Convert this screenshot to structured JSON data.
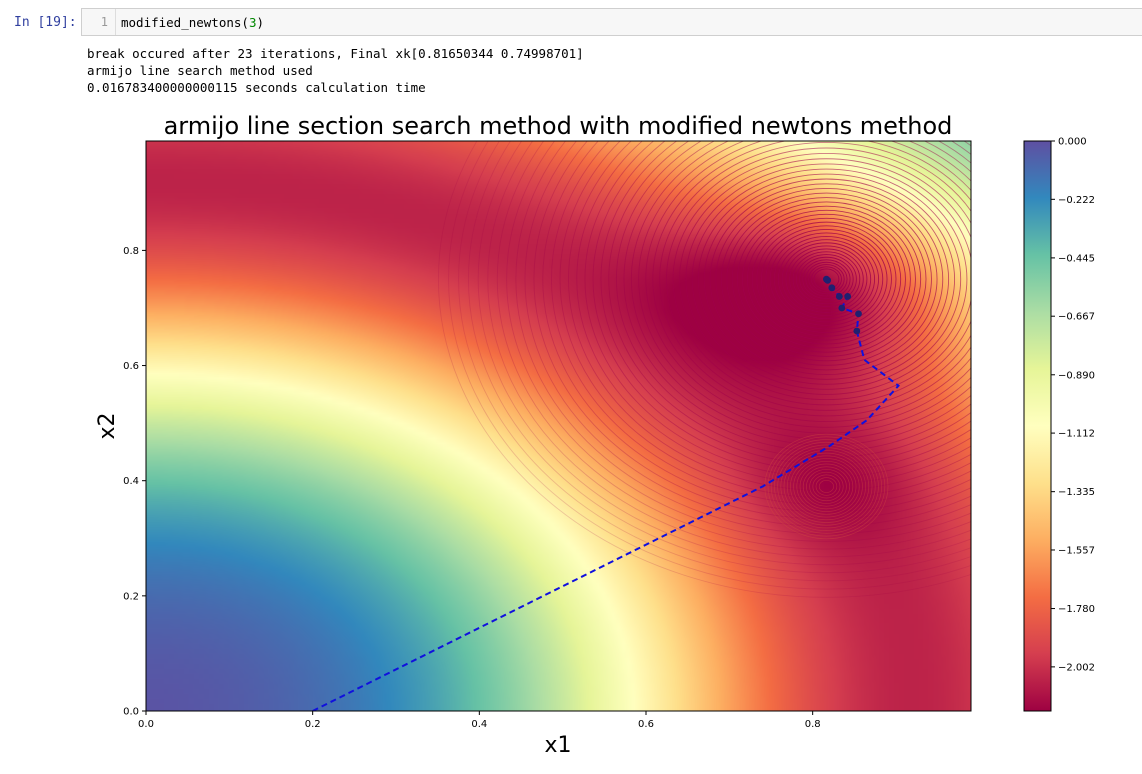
{
  "cell": {
    "prompt": "In [19]:",
    "line_number": "1",
    "code_fn": "modified_newtons(",
    "code_arg": "3",
    "code_close": ")"
  },
  "output_lines": [
    "break occured after 23 iterations, Final xk[0.81650344 0.74998701]",
    "armijo line search method used",
    "0.016783400000000115 seconds calculation time"
  ],
  "chart_data": {
    "type": "contour",
    "title": "armijo line section search method with modified newtons method",
    "xlabel": "x1",
    "ylabel": "x2",
    "xlim": [
      0.0,
      0.99
    ],
    "ylim": [
      0.0,
      0.99
    ],
    "xticks": [
      "0.0",
      "0.2",
      "0.4",
      "0.6",
      "0.8"
    ],
    "yticks": [
      "0.0",
      "0.2",
      "0.4",
      "0.6",
      "0.8"
    ],
    "colormap": "Spectral",
    "colorbar": {
      "range": [
        -2.17,
        0.0
      ],
      "ticks": [
        "0.000",
        "−0.222",
        "−0.445",
        "−0.667",
        "−0.890",
        "−1.112",
        "−1.335",
        "−1.557",
        "−1.780",
        "−2.002"
      ]
    },
    "minimum": {
      "x": 0.8165,
      "y": 0.75
    },
    "secondary_minimum": {
      "x": 0.8165,
      "y": 0.39
    },
    "path_color": "#1010dd",
    "path": [
      [
        0.2,
        0.0
      ],
      [
        0.74,
        0.39
      ],
      [
        0.82,
        0.46
      ],
      [
        0.865,
        0.505
      ],
      [
        0.903,
        0.565
      ],
      [
        0.862,
        0.61
      ],
      [
        0.853,
        0.66
      ],
      [
        0.855,
        0.69
      ],
      [
        0.835,
        0.7
      ],
      [
        0.842,
        0.72
      ],
      [
        0.832,
        0.72
      ],
      [
        0.823,
        0.735
      ],
      [
        0.82,
        0.745
      ],
      [
        0.8165,
        0.75
      ]
    ],
    "markers": [
      [
        0.853,
        0.66
      ],
      [
        0.855,
        0.69
      ],
      [
        0.835,
        0.7
      ],
      [
        0.842,
        0.72
      ],
      [
        0.832,
        0.72
      ],
      [
        0.823,
        0.735
      ],
      [
        0.818,
        0.748
      ],
      [
        0.8165,
        0.75
      ]
    ]
  }
}
